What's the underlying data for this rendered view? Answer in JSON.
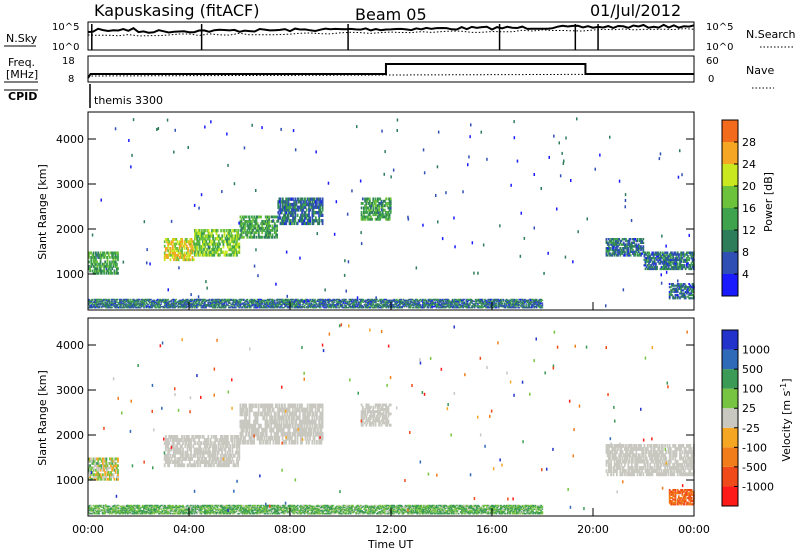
{
  "header": {
    "title": "Kapuskasing (fitACF)",
    "beam": "Beam 05",
    "date": "01/Jul/2012"
  },
  "colors": {
    "power_scale": [
      "#1a1aff",
      "#2f4fb5",
      "#2e7d5a",
      "#3fa34d",
      "#6cc23a",
      "#c9e81f",
      "#f5a623",
      "#f26a1b",
      "#ff1a1a"
    ],
    "velocity_scale": [
      "#ff1a1a",
      "#f04a1a",
      "#f07c1a",
      "#f5a623",
      "#c8c8c0",
      "#76c442",
      "#3b9a55",
      "#2e6ab8",
      "#2233cc"
    ],
    "ground_scatter": "#c8c8c0"
  },
  "panels": {
    "nsky": {
      "left_label": "N.Sky",
      "left_ticks": [
        "10^5",
        "10^0"
      ],
      "right_ticks": [
        "10^5",
        "10^0"
      ],
      "right_label": "N.Search"
    },
    "freq": {
      "left_label": "Freq.",
      "left_unit": "[MHz]",
      "left_ticks": [
        "18",
        "8"
      ],
      "right_ticks": [
        "60",
        "0"
      ],
      "right_label": "Nave"
    },
    "cpid": {
      "left_label": "CPID",
      "text": "themis 3300"
    }
  },
  "chart_data": [
    {
      "type": "heatmap",
      "name": "power",
      "ylabel": "Slant Range [km]",
      "xlabel": "",
      "yticks": [
        1000,
        2000,
        3000,
        4000
      ],
      "ylim": [
        200,
        4600
      ],
      "xlim": [
        0,
        24
      ],
      "colorbar_label": "Power [dB]",
      "colorbar_ticks": [
        4,
        8,
        12,
        16,
        20,
        24,
        28
      ],
      "colorbar_range": [
        0,
        32
      ],
      "regions": [
        {
          "t0": 0.0,
          "t1": 1.2,
          "r0": 1000,
          "r1": 1500,
          "level": 12
        },
        {
          "t0": 3.0,
          "t1": 4.2,
          "r0": 1300,
          "r1": 1800,
          "level": 20
        },
        {
          "t0": 4.2,
          "t1": 6.0,
          "r0": 1400,
          "r1": 2000,
          "level": 16
        },
        {
          "t0": 6.0,
          "t1": 7.5,
          "r0": 1800,
          "r1": 2300,
          "level": 12
        },
        {
          "t0": 7.5,
          "t1": 9.3,
          "r0": 2100,
          "r1": 2700,
          "level": 8
        },
        {
          "t0": 10.8,
          "t1": 12.0,
          "r0": 2200,
          "r1": 2700,
          "level": 12
        },
        {
          "t0": 20.5,
          "t1": 22.0,
          "r0": 1400,
          "r1": 1800,
          "level": 8
        },
        {
          "t0": 22.0,
          "t1": 24.0,
          "r0": 1100,
          "r1": 1500,
          "level": 8
        },
        {
          "t0": 0.0,
          "t1": 18.0,
          "r0": 250,
          "r1": 450,
          "level": 8
        },
        {
          "t0": 23.0,
          "t1": 24.0,
          "r0": 450,
          "r1": 800,
          "level": 8
        }
      ]
    },
    {
      "type": "heatmap",
      "name": "velocity",
      "ylabel": "Slant Range [km]",
      "xlabel": "Time UT",
      "xticks": [
        "00:00",
        "04:00",
        "08:00",
        "12:00",
        "16:00",
        "20:00",
        "00:00"
      ],
      "xtick_values": [
        0,
        4,
        8,
        12,
        16,
        20,
        24
      ],
      "yticks": [
        1000,
        2000,
        3000,
        4000
      ],
      "ylim": [
        200,
        4600
      ],
      "xlim": [
        0,
        24
      ],
      "colorbar_label": "Velocity [m s^-1]",
      "colorbar_ticks": [
        "1000",
        "500",
        "100",
        "25",
        "-25",
        "-100",
        "-500",
        "-1000"
      ],
      "regions": [
        {
          "t0": 0.0,
          "t1": 1.2,
          "r0": 1000,
          "r1": 1500,
          "v": 25
        },
        {
          "t0": 3.0,
          "t1": 6.0,
          "r0": 1300,
          "r1": 2000,
          "v": 0
        },
        {
          "t0": 6.0,
          "t1": 9.3,
          "r0": 1800,
          "r1": 2700,
          "v": 0
        },
        {
          "t0": 10.8,
          "t1": 12.0,
          "r0": 2200,
          "r1": 2700,
          "v": 0
        },
        {
          "t0": 20.5,
          "t1": 24.0,
          "r0": 1100,
          "r1": 1800,
          "v": 0
        },
        {
          "t0": 0.0,
          "t1": 18.0,
          "r0": 250,
          "r1": 450,
          "v": 100
        },
        {
          "t0": 23.0,
          "t1": 24.0,
          "r0": 450,
          "r1": 800,
          "v": -500
        }
      ]
    }
  ]
}
